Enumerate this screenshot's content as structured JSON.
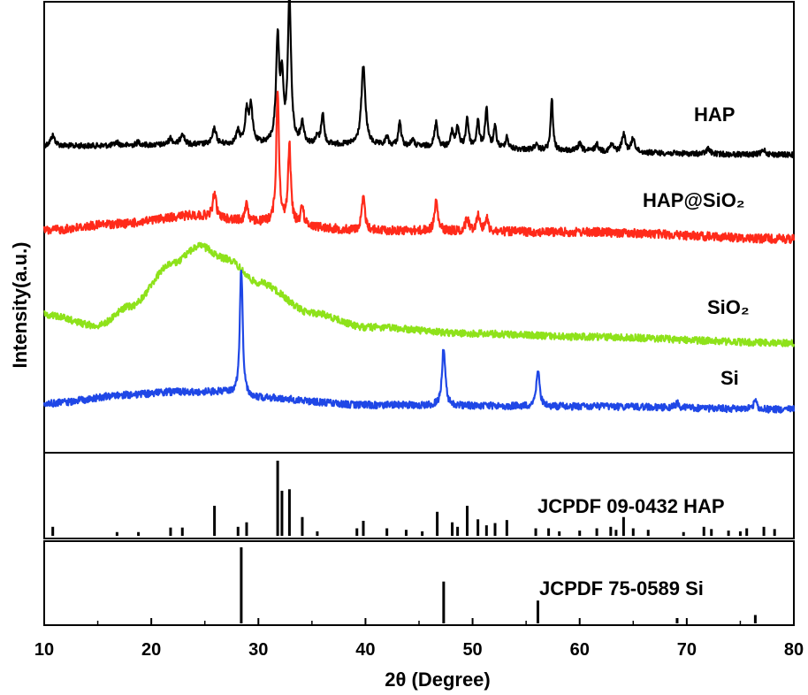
{
  "chart_data": {
    "type": "line",
    "xlabel": "2θ (Degree)",
    "ylabel": "Intensity(a.u.)",
    "xlim": [
      10,
      80
    ],
    "xticks": [
      10,
      20,
      30,
      40,
      50,
      60,
      70,
      80
    ],
    "grid": false,
    "series": [
      {
        "name": "HAP",
        "color": "#000000",
        "baseline": [
          [
            10,
            0.05
          ],
          [
            30,
            0.06
          ],
          [
            80,
            0.0
          ]
        ],
        "peaks": [
          [
            10.8,
            0.06,
            0.5
          ],
          [
            16.8,
            0.02,
            0.4
          ],
          [
            18.8,
            0.02,
            0.4
          ],
          [
            21.8,
            0.04,
            0.4
          ],
          [
            22.9,
            0.07,
            0.4
          ],
          [
            25.9,
            0.09,
            0.4
          ],
          [
            28.1,
            0.07,
            0.4
          ],
          [
            28.9,
            0.18,
            0.35
          ],
          [
            29.3,
            0.22,
            0.35
          ],
          [
            31.8,
            0.6,
            0.35
          ],
          [
            32.2,
            0.35,
            0.3
          ],
          [
            32.9,
            0.85,
            0.35
          ],
          [
            34.1,
            0.12,
            0.35
          ],
          [
            35.5,
            0.04,
            0.3
          ],
          [
            36.0,
            0.18,
            0.3
          ],
          [
            39.8,
            0.45,
            0.45
          ],
          [
            42.0,
            0.05,
            0.3
          ],
          [
            43.2,
            0.14,
            0.3
          ],
          [
            44.4,
            0.04,
            0.3
          ],
          [
            46.6,
            0.14,
            0.35
          ],
          [
            48.1,
            0.09,
            0.3
          ],
          [
            48.6,
            0.12,
            0.3
          ],
          [
            49.5,
            0.17,
            0.3
          ],
          [
            50.5,
            0.15,
            0.3
          ],
          [
            51.3,
            0.23,
            0.3
          ],
          [
            52.1,
            0.12,
            0.3
          ],
          [
            53.2,
            0.07,
            0.3
          ],
          [
            55.9,
            0.03,
            0.3
          ],
          [
            57.4,
            0.3,
            0.25
          ],
          [
            60.0,
            0.04,
            0.4
          ],
          [
            61.6,
            0.04,
            0.4
          ],
          [
            63.0,
            0.04,
            0.4
          ],
          [
            64.1,
            0.1,
            0.4
          ],
          [
            65.0,
            0.08,
            0.4
          ],
          [
            72.0,
            0.03,
            0.4
          ],
          [
            77.2,
            0.03,
            0.4
          ]
        ]
      },
      {
        "name": "HAP@SiO₂",
        "color": "#ff2a1a",
        "baseline": [
          [
            10,
            0.05
          ],
          [
            17,
            0.09
          ],
          [
            24,
            0.14
          ],
          [
            30,
            0.1
          ],
          [
            40,
            0.05
          ],
          [
            60,
            0.04
          ],
          [
            80,
            0.0
          ]
        ],
        "peaks": [
          [
            25.9,
            0.15,
            0.35
          ],
          [
            28.9,
            0.12,
            0.3
          ],
          [
            31.8,
            0.8,
            0.3
          ],
          [
            32.9,
            0.48,
            0.3
          ],
          [
            34.1,
            0.12,
            0.3
          ],
          [
            39.8,
            0.2,
            0.35
          ],
          [
            46.6,
            0.18,
            0.35
          ],
          [
            49.5,
            0.08,
            0.35
          ],
          [
            50.5,
            0.1,
            0.35
          ],
          [
            51.3,
            0.08,
            0.35
          ]
        ]
      },
      {
        "name": "SiO₂",
        "color": "#8ee21a",
        "baseline": [
          [
            10,
            0.18
          ],
          [
            15,
            0.11
          ],
          [
            18,
            0.23
          ],
          [
            22,
            0.5
          ],
          [
            24.5,
            0.61
          ],
          [
            27,
            0.53
          ],
          [
            30,
            0.38
          ],
          [
            35,
            0.19
          ],
          [
            40,
            0.1
          ],
          [
            50,
            0.06
          ],
          [
            60,
            0.04
          ],
          [
            80,
            0.0
          ]
        ],
        "peaks": []
      },
      {
        "name": "Si",
        "color": "#1f47e6",
        "baseline": [
          [
            10,
            0.04
          ],
          [
            18,
            0.1
          ],
          [
            22,
            0.12
          ],
          [
            26,
            0.12
          ],
          [
            30,
            0.08
          ],
          [
            40,
            0.03
          ],
          [
            60,
            0.02
          ],
          [
            80,
            0.0
          ]
        ],
        "peaks": [
          [
            28.4,
            0.88,
            0.32
          ],
          [
            47.3,
            0.4,
            0.35
          ],
          [
            56.1,
            0.26,
            0.35
          ],
          [
            69.1,
            0.03,
            0.4
          ],
          [
            76.4,
            0.06,
            0.35
          ]
        ]
      }
    ],
    "reference_patterns": [
      {
        "name": "JCPDF 09-0432 HAP",
        "lines": [
          [
            10.8,
            0.12
          ],
          [
            16.8,
            0.05
          ],
          [
            18.8,
            0.05
          ],
          [
            21.8,
            0.11
          ],
          [
            22.9,
            0.11
          ],
          [
            25.9,
            0.4
          ],
          [
            28.1,
            0.12
          ],
          [
            28.9,
            0.18
          ],
          [
            31.8,
            1.0
          ],
          [
            32.2,
            0.6
          ],
          [
            32.9,
            0.62
          ],
          [
            34.1,
            0.25
          ],
          [
            35.5,
            0.06
          ],
          [
            39.2,
            0.1
          ],
          [
            39.8,
            0.2
          ],
          [
            42.0,
            0.1
          ],
          [
            43.8,
            0.08
          ],
          [
            45.3,
            0.06
          ],
          [
            46.7,
            0.32
          ],
          [
            48.1,
            0.18
          ],
          [
            48.6,
            0.12
          ],
          [
            49.5,
            0.4
          ],
          [
            50.5,
            0.22
          ],
          [
            51.3,
            0.14
          ],
          [
            52.1,
            0.17
          ],
          [
            53.2,
            0.21
          ],
          [
            55.9,
            0.1
          ],
          [
            57.1,
            0.1
          ],
          [
            58.1,
            0.06
          ],
          [
            60.0,
            0.07
          ],
          [
            61.6,
            0.1
          ],
          [
            62.9,
            0.12
          ],
          [
            63.4,
            0.08
          ],
          [
            64.1,
            0.25
          ],
          [
            65.0,
            0.1
          ],
          [
            66.4,
            0.08
          ],
          [
            69.7,
            0.05
          ],
          [
            71.6,
            0.12
          ],
          [
            72.3,
            0.09
          ],
          [
            73.9,
            0.07
          ],
          [
            75.0,
            0.06
          ],
          [
            75.6,
            0.1
          ],
          [
            77.2,
            0.12
          ],
          [
            78.2,
            0.09
          ]
        ]
      },
      {
        "name": "JCPDF 75-0589 Si",
        "lines": [
          [
            28.4,
            1.0
          ],
          [
            47.3,
            0.55
          ],
          [
            56.1,
            0.3
          ],
          [
            69.1,
            0.07
          ],
          [
            76.4,
            0.11
          ]
        ]
      }
    ]
  }
}
